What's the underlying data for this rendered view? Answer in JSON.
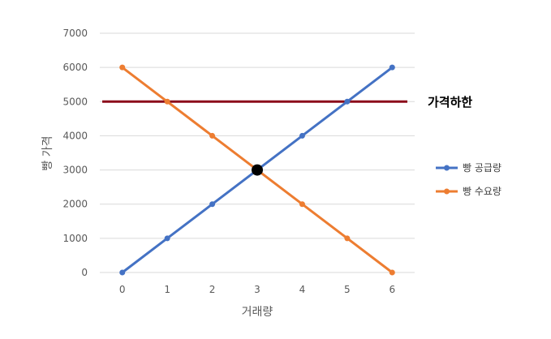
{
  "chart_data": {
    "type": "line",
    "title": "",
    "xlabel": "거래량",
    "ylabel": "빵 가격",
    "x": [
      0,
      1,
      2,
      3,
      4,
      5,
      6
    ],
    "ylim": [
      0,
      7000
    ],
    "yticks": [
      0,
      1000,
      2000,
      3000,
      4000,
      5000,
      6000,
      7000
    ],
    "grid": true,
    "legend_position": "right",
    "series": [
      {
        "name": "빵 공급량",
        "values": [
          0,
          1000,
          2000,
          3000,
          4000,
          5000,
          6000
        ],
        "color": "#4472C4"
      },
      {
        "name": "빵 수요량",
        "values": [
          6000,
          5000,
          4000,
          3000,
          2000,
          1000,
          0
        ],
        "color": "#ED7D31"
      }
    ],
    "reference_line": {
      "label": "가격하한",
      "y": 5000,
      "color": "#8B0A1A"
    },
    "highlight_point": {
      "x": 3,
      "y": 3000,
      "color": "#000000"
    }
  }
}
